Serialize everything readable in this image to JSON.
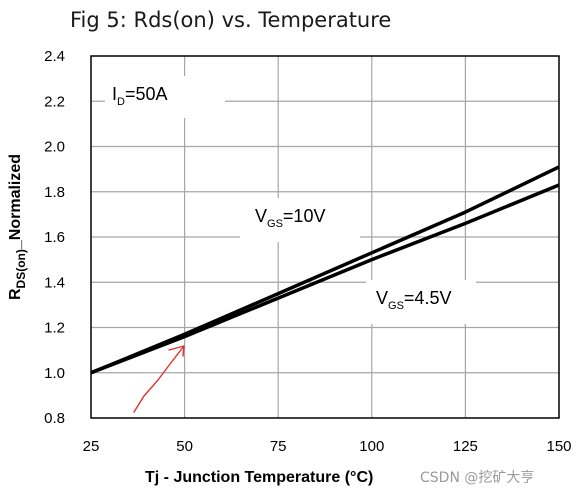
{
  "chart_data": {
    "type": "line",
    "title": "Fig 5: Rds(on) vs. Temperature",
    "xlabel": "Tj - Junction Temperature (°C)",
    "ylabel": {
      "main": "R",
      "sub": "DS(on)",
      "rest": "_Normalized"
    },
    "xlim": [
      25,
      150
    ],
    "ylim": [
      0.8,
      2.4
    ],
    "xticks": [
      25,
      50,
      75,
      100,
      125,
      150
    ],
    "yticks": [
      0.8,
      1.0,
      1.2,
      1.4,
      1.6,
      1.8,
      2.0,
      2.2,
      2.4
    ],
    "ytick_labels": [
      "0.8",
      "1.0",
      "1.2",
      "1.4",
      "1.6",
      "1.8",
      "2.0",
      "2.2",
      "2.4"
    ],
    "grid": true,
    "series": [
      {
        "name": "VGS=10V",
        "x": [
          25,
          50,
          75,
          100,
          125,
          150
        ],
        "y": [
          1.0,
          1.17,
          1.35,
          1.53,
          1.71,
          1.91
        ]
      },
      {
        "name": "VGS=4.5V",
        "x": [
          25,
          50,
          75,
          100,
          125,
          150
        ],
        "y": [
          1.0,
          1.16,
          1.33,
          1.5,
          1.66,
          1.83
        ]
      }
    ],
    "annotations": [
      {
        "main": "I",
        "sub": "D",
        "rest": "=50A"
      },
      {
        "main": "V",
        "sub": "GS",
        "rest": "=10V"
      },
      {
        "main": "V",
        "sub": "GS",
        "rest": "=4.5V"
      }
    ],
    "colors": {
      "lines": "#000000",
      "grid": "#a6a6a6",
      "arrow": "#e03030"
    }
  },
  "watermark": "CSDN @挖矿大亨"
}
